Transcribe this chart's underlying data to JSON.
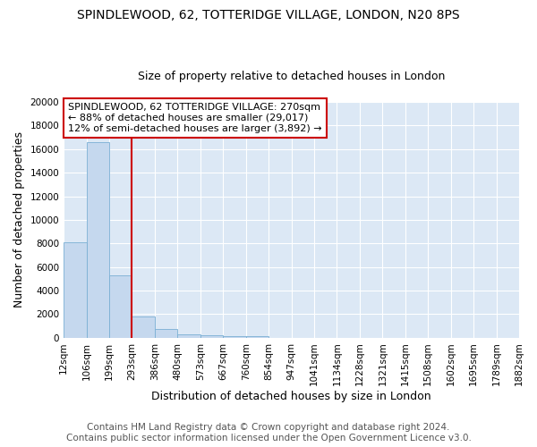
{
  "title": "SPINDLEWOOD, 62, TOTTERIDGE VILLAGE, LONDON, N20 8PS",
  "subtitle": "Size of property relative to detached houses in London",
  "xlabel": "Distribution of detached houses by size in London",
  "ylabel": "Number of detached properties",
  "bar_values": [
    8100,
    16600,
    5300,
    1820,
    720,
    320,
    200,
    150,
    110,
    0,
    0,
    0,
    0,
    0,
    0,
    0,
    0,
    0,
    0,
    0
  ],
  "bar_color": "#c5d8ee",
  "bar_edge_color": "#7aafd4",
  "vline_color": "#cc0000",
  "vline_pos": 2.5,
  "ylim": [
    0,
    20000
  ],
  "yticks": [
    0,
    2000,
    4000,
    6000,
    8000,
    10000,
    12000,
    14000,
    16000,
    18000,
    20000
  ],
  "tick_labels": [
    "12sqm",
    "106sqm",
    "199sqm",
    "293sqm",
    "386sqm",
    "480sqm",
    "573sqm",
    "667sqm",
    "760sqm",
    "854sqm",
    "947sqm",
    "1041sqm",
    "1134sqm",
    "1228sqm",
    "1321sqm",
    "1415sqm",
    "1508sqm",
    "1602sqm",
    "1695sqm",
    "1789sqm",
    "1882sqm"
  ],
  "annotation_line1": "SPINDLEWOOD, 62 TOTTERIDGE VILLAGE: 270sqm",
  "annotation_line2": "← 88% of detached houses are smaller (29,017)",
  "annotation_line3": "12% of semi-detached houses are larger (3,892) →",
  "footer_line1": "Contains HM Land Registry data © Crown copyright and database right 2024.",
  "footer_line2": "Contains public sector information licensed under the Open Government Licence v3.0.",
  "plot_bg_color": "#dce8f5",
  "grid_color": "#ffffff",
  "title_fontsize": 10,
  "subtitle_fontsize": 9,
  "axis_label_fontsize": 9,
  "tick_fontsize": 7.5,
  "annotation_fontsize": 8,
  "footer_fontsize": 7.5
}
